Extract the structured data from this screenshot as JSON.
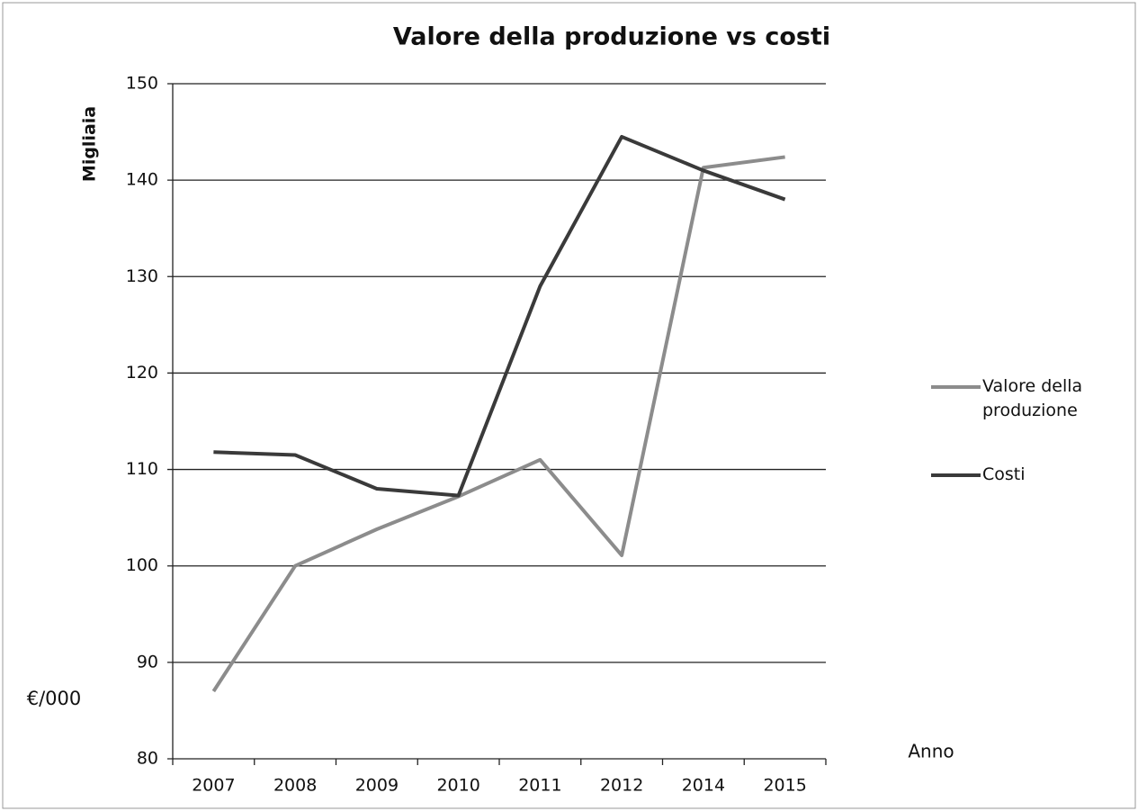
{
  "chart_data": {
    "type": "line",
    "title": "Valore della produzione vs costi",
    "y_label": "Migliaia",
    "x_label": "Anno",
    "annotation": "€/000",
    "categories": [
      "2007",
      "2008",
      "2009",
      "2010",
      "2011",
      "2012",
      "2014",
      "2015"
    ],
    "series": [
      {
        "name": "Valore della produzione",
        "color": "#8c8c8c",
        "values": [
          87,
          100,
          103.8,
          107.2,
          111,
          101.1,
          141.3,
          142.4
        ]
      },
      {
        "name": "Costi",
        "color": "#3a3a3a",
        "values": [
          111.8,
          111.5,
          108,
          107.3,
          129,
          144.5,
          141,
          138
        ]
      }
    ],
    "ylim": [
      80,
      150
    ],
    "yticks": [
      80,
      90,
      100,
      110,
      120,
      130,
      140,
      150
    ],
    "grid": true
  }
}
